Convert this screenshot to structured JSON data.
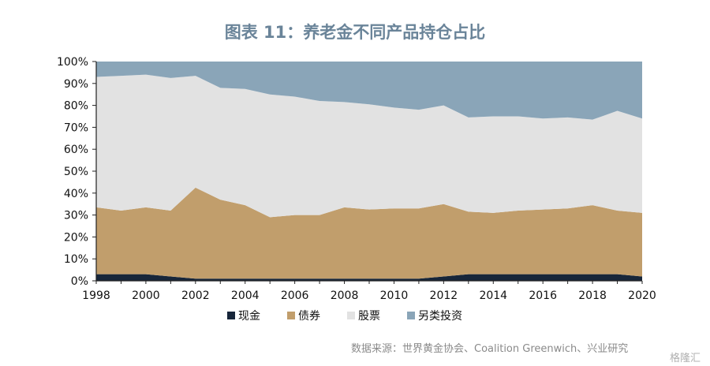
{
  "chart_data": {
    "type": "area",
    "title": "图表 11：养老金不同产品持仓占比",
    "x": [
      1998,
      1999,
      2000,
      2001,
      2002,
      2003,
      2004,
      2005,
      2006,
      2007,
      2008,
      2009,
      2010,
      2011,
      2012,
      2013,
      2014,
      2015,
      2016,
      2017,
      2018,
      2019,
      2020
    ],
    "x_tick_labels": [
      "1998",
      "2000",
      "2002",
      "2004",
      "2006",
      "2008",
      "2010",
      "2012",
      "2014",
      "2016",
      "2018",
      "2020"
    ],
    "y_tick_labels": [
      "0%",
      "10%",
      "20%",
      "30%",
      "40%",
      "50%",
      "60%",
      "70%",
      "80%",
      "90%",
      "100%"
    ],
    "ylim": [
      0,
      100
    ],
    "stacked": true,
    "percent": true,
    "series": [
      {
        "name": "现金",
        "color": "#17263a",
        "values": [
          3,
          3,
          3,
          2,
          1,
          1,
          1,
          1,
          1,
          1,
          1,
          1,
          1,
          1,
          2,
          3,
          3,
          3,
          3,
          3,
          3,
          3,
          2
        ]
      },
      {
        "name": "债券",
        "color": "#c19e6c",
        "values": [
          30.5,
          29,
          30.5,
          30,
          41.5,
          36,
          33.5,
          28,
          29,
          29,
          32.5,
          31.5,
          32,
          32,
          33,
          28.5,
          28,
          29,
          29.5,
          30,
          31.5,
          29,
          29
        ]
      },
      {
        "name": "股票",
        "color": "#e2e2e2",
        "values": [
          59.5,
          61.5,
          60.5,
          60.5,
          51,
          51,
          53,
          56,
          54,
          52,
          48,
          48,
          46,
          45,
          45,
          43,
          44,
          43,
          41.5,
          41.5,
          39,
          45.5,
          43
        ]
      },
      {
        "name": "另类投资",
        "color": "#8aa5b8",
        "values": [
          7,
          6.5,
          6,
          7.5,
          6.5,
          12,
          12.5,
          15,
          16,
          18,
          18.5,
          19.5,
          21,
          22,
          20,
          25.5,
          25,
          25,
          26,
          25.5,
          26.5,
          22.5,
          26
        ]
      }
    ]
  },
  "source_text": "数据来源：世界黄金协会、Coalition Greenwich、兴业研究",
  "watermark_text": "格隆汇"
}
